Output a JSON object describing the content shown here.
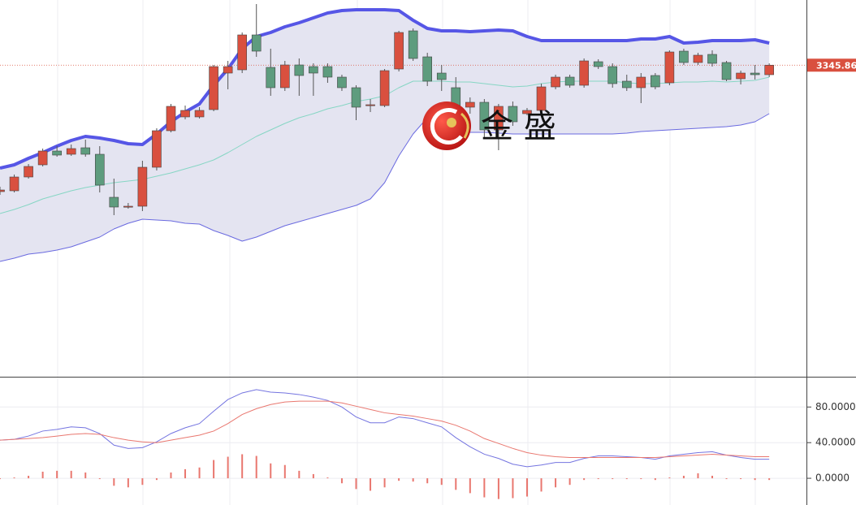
{
  "chart_data": [
    {
      "type": "candlestick",
      "open": [
        3268,
        3268.5,
        3277,
        3284.5,
        3293,
        3291,
        3295,
        3291,
        3264.5,
        3258.5,
        3259,
        3283,
        3305.5,
        3314,
        3314,
        3318.5,
        3341,
        3343,
        3364.5,
        3344.5,
        3332,
        3346,
        3345,
        3345,
        3338.5,
        3332,
        3321,
        3321,
        3343.5,
        3367,
        3351,
        3341,
        3332,
        3320,
        3323,
        3306,
        3320.5,
        3316,
        3318,
        3332.5,
        3338.5,
        3333.5,
        3348,
        3345,
        3336,
        3332,
        3339.5,
        3335,
        3354.5,
        3347.5,
        3352.5,
        3347.5,
        3337.5,
        3341,
        3340
      ],
      "high": [
        3271,
        3278.5,
        3285,
        3294.5,
        3296,
        3297,
        3300,
        3296,
        3276,
        3261,
        3287,
        3307,
        3322,
        3321,
        3320,
        3346,
        3348.5,
        3366,
        3383.5,
        3356,
        3348.5,
        3350,
        3347,
        3347,
        3340,
        3333.5,
        3325,
        3343.5,
        3367,
        3368.5,
        3353.5,
        3346,
        3338.5,
        3326,
        3325,
        3322,
        3323.5,
        3319.5,
        3334.5,
        3340,
        3340,
        3350,
        3349.5,
        3347,
        3340,
        3341,
        3341,
        3355,
        3356,
        3353.5,
        3355,
        3348.5,
        3342.5,
        3346,
        3347
      ],
      "low": [
        3266,
        3267.5,
        3276,
        3283.5,
        3289.5,
        3290,
        3289.5,
        3267.5,
        3253.5,
        3257.5,
        3256,
        3281,
        3304.5,
        3312.5,
        3313,
        3317.5,
        3331,
        3341,
        3351,
        3327,
        3330,
        3327,
        3327,
        3335,
        3330,
        3312,
        3317,
        3320,
        3342,
        3348.5,
        3333,
        3330,
        3316,
        3316,
        3301,
        3293.5,
        3308.5,
        3315,
        3316,
        3331,
        3332,
        3332,
        3343.5,
        3332,
        3330,
        3322.5,
        3331,
        3333.5,
        3346,
        3346,
        3345,
        3336,
        3334,
        3337,
        3338.5
      ],
      "close": [
        3269,
        3277,
        3283.5,
        3293,
        3290.5,
        3294.5,
        3291,
        3272,
        3258.5,
        3259,
        3283,
        3305.5,
        3320.5,
        3318,
        3318,
        3345,
        3345,
        3364.5,
        3354.5,
        3332,
        3346,
        3339.5,
        3341,
        3338.5,
        3332,
        3320,
        3321.5,
        3342.5,
        3366,
        3350,
        3336,
        3337,
        3319.5,
        3323,
        3306,
        3320.5,
        3311,
        3318,
        3332.5,
        3338.5,
        3333.5,
        3348.5,
        3345,
        3334.5,
        3332,
        3338.5,
        3332.5,
        3354,
        3347.5,
        3352,
        3347,
        3337,
        3341,
        3340,
        3345.86
      ],
      "up_color": "#d9503f",
      "down_color": "#5e9c7e",
      "bands": {
        "upper": {
          "color": "#5656e6",
          "values": [
            3282.5,
            3284.5,
            3288.5,
            3292,
            3296,
            3299.5,
            3302,
            3301,
            3299.5,
            3297.5,
            3297,
            3303.5,
            3311,
            3317,
            3322,
            3333.5,
            3343.5,
            3356,
            3363.5,
            3366,
            3369.5,
            3372,
            3375,
            3378,
            3379.5,
            3380,
            3380,
            3380,
            3379.5,
            3373.5,
            3368.5,
            3367,
            3367,
            3366.5,
            3367,
            3367.5,
            3367,
            3363.5,
            3361,
            3361,
            3361,
            3361,
            3361,
            3361,
            3361,
            3362,
            3362,
            3363.5,
            3359.5,
            3360,
            3361,
            3361,
            3361,
            3361.5,
            3359.5
          ]
        },
        "middle": {
          "color": "#86d6c4",
          "values": [
            3254.5,
            3257,
            3260,
            3263.5,
            3266,
            3268.5,
            3270.5,
            3272,
            3273.5,
            3274.5,
            3275.5,
            3277.5,
            3279.5,
            3282,
            3284.5,
            3287.5,
            3292,
            3297,
            3302,
            3306,
            3310,
            3313.5,
            3316,
            3319,
            3321,
            3323.5,
            3325,
            3327,
            3332,
            3336,
            3336,
            3336,
            3335.5,
            3335.5,
            3334.5,
            3333.5,
            3332.5,
            3333,
            3334.5,
            3335.5,
            3336,
            3336,
            3336,
            3336,
            3335,
            3334.5,
            3334.5,
            3335,
            3335.5,
            3335.5,
            3336,
            3335.5,
            3336,
            3336.5,
            3338.5
          ]
        },
        "lower": {
          "color": "#6a6ae0",
          "values": [
            3225,
            3227,
            3229.5,
            3230.5,
            3232,
            3234,
            3237,
            3240,
            3245,
            3248.5,
            3251,
            3250.5,
            3250,
            3248.5,
            3248,
            3244,
            3241,
            3237.5,
            3240,
            3243.5,
            3247,
            3249.5,
            3252,
            3254.5,
            3257,
            3259.5,
            3263.5,
            3273.5,
            3290,
            3303.5,
            3313.5,
            3306,
            3305,
            3304.5,
            3304.5,
            3304,
            3303.5,
            3303.5,
            3303.5,
            3303.5,
            3303.5,
            3303.5,
            3303.5,
            3303.5,
            3304,
            3305,
            3305.5,
            3306,
            3306.5,
            3307,
            3307.5,
            3308,
            3309,
            3311,
            3316
          ]
        },
        "fill": "#e4e4f1"
      },
      "last_price": 3345.86,
      "ylim": [
        3154.5,
        3386
      ],
      "watermark": "金 盛"
    },
    {
      "type": "line",
      "series": [
        {
          "color": "#7474e0",
          "values": [
            42.8,
            43.7,
            47.4,
            53.0,
            54.9,
            57.7,
            56.7,
            50.2,
            37.2,
            33.5,
            34.4,
            40.9,
            50.2,
            56.7,
            61.4,
            75.3,
            88.4,
            95.8,
            99.5,
            96.7,
            95.8,
            94.0,
            91.1,
            87.4,
            80.0,
            68.8,
            62.3,
            62.3,
            68.8,
            67.0,
            62.3,
            57.7,
            45.6,
            35.3,
            27.0,
            22.3,
            15.8,
            13.0,
            14.9,
            17.7,
            17.7,
            22.3,
            25.1,
            25.1,
            24.2,
            23.3,
            21.4,
            25.1,
            27.0,
            28.8,
            29.8,
            26.0,
            23.3,
            21.4,
            21.4
          ]
        },
        {
          "color": "#e9776f",
          "values": [
            42.8,
            43.7,
            44.6,
            45.6,
            47.4,
            49.3,
            50.2,
            49.3,
            45.6,
            42.8,
            40.9,
            40.0,
            42.8,
            45.6,
            48.4,
            53.0,
            61.4,
            71.6,
            78.1,
            82.8,
            85.6,
            86.5,
            86.5,
            86.5,
            84.6,
            80.9,
            77.2,
            73.5,
            71.6,
            69.8,
            67.0,
            64.2,
            59.5,
            53.0,
            44.6,
            39.1,
            33.5,
            28.8,
            26.0,
            24.2,
            23.3,
            23.3,
            23.3,
            23.3,
            23.3,
            23.3,
            23.3,
            24.2,
            25.1,
            26.0,
            27.0,
            26.0,
            25.1,
            24.2,
            24.2
          ]
        }
      ],
      "bars": {
        "color": "#e9776f",
        "values": [
          0,
          0.9,
          2.8,
          7.4,
          8.4,
          8.4,
          6.5,
          0,
          -8.4,
          -10.2,
          -7.4,
          -1.9,
          6.5,
          10.2,
          12.1,
          20.5,
          24.2,
          27.0,
          25.1,
          16.7,
          14.9,
          8.4,
          4.7,
          0.9,
          -5.6,
          -12.1,
          -14.0,
          -10.2,
          -2.8,
          -3.7,
          -5.6,
          -7.4,
          -13.0,
          -16.7,
          -21.4,
          -23.3,
          -22.3,
          -20.5,
          -14.9,
          -10.2,
          -7.4,
          -1.9,
          -0.9,
          -0.9,
          -0.9,
          -0.9,
          -1.9,
          0.9,
          2.8,
          5.6,
          2.8,
          0,
          -0.9,
          -1.9,
          -1.9
        ]
      },
      "ylim": [
        -30,
        114
      ],
      "yticks": [
        {
          "value": 80,
          "label": "80.0000"
        },
        {
          "value": 40,
          "label": "40.0000"
        },
        {
          "value": 0,
          "label": "0.0000"
        }
      ],
      "grid": true
    }
  ]
}
